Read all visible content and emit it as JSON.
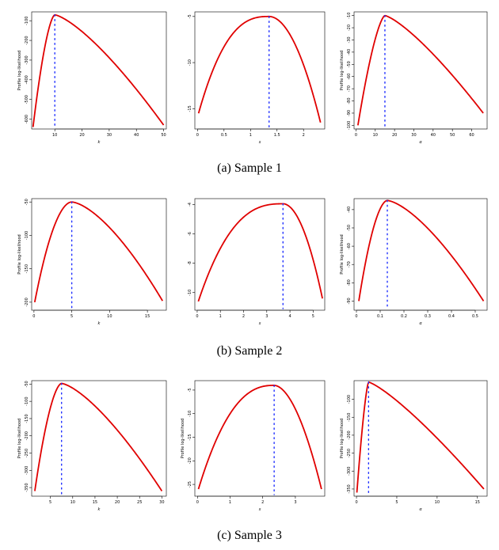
{
  "captions": [
    "(a) Sample 1",
    "(b) Sample 2",
    "(c) Sample 3"
  ],
  "colors": {
    "curve": "#e00000",
    "mle_line": "#1f2fff",
    "axis": "#000000"
  },
  "chart_data": [
    {
      "type": "line",
      "ylabel": "Profile log-likelihood",
      "xlabel": "k",
      "x_ticks": [
        10,
        20,
        30,
        40,
        50
      ],
      "y_ticks": [
        -100,
        -200,
        -300,
        -400,
        -500,
        -600
      ],
      "xlim": [
        1.5,
        51
      ],
      "ylim": [
        -650,
        -55
      ],
      "curve": {
        "kind": "skewed",
        "xmin": 2,
        "xmax": 50,
        "peak_x": 10,
        "peak_y": -70,
        "left_y": -640,
        "right_y": -630,
        "shape": 0.6
      },
      "mle": 10
    },
    {
      "type": "line",
      "ylabel": "",
      "xlabel": "s",
      "x_ticks": [
        0.0,
        0.5,
        1.0,
        1.5,
        2.0
      ],
      "y_ticks": [
        -5,
        -10,
        -15
      ],
      "xlim": [
        -0.05,
        2.4
      ],
      "ylim": [
        -17.2,
        -4.5
      ],
      "curve": {
        "kind": "skewed",
        "xmin": 0.02,
        "xmax": 2.32,
        "peak_x": 1.35,
        "peak_y": -5.0,
        "left_y": -15.5,
        "right_y": -16.5,
        "shape": 1.6
      },
      "mle": 1.35
    },
    {
      "type": "line",
      "ylabel": "Profile log-likelihood",
      "xlabel": "α",
      "x_ticks": [
        0,
        10,
        20,
        30,
        40,
        50,
        60
      ],
      "y_ticks": [
        -10,
        -20,
        -30,
        -40,
        -50,
        -60,
        -70,
        -80,
        -90,
        -100
      ],
      "xlim": [
        -1,
        68
      ],
      "ylim": [
        -103,
        -7
      ],
      "curve": {
        "kind": "skewed",
        "xmin": 1,
        "xmax": 66,
        "peak_x": 15,
        "peak_y": -10,
        "left_y": -100,
        "right_y": -90,
        "shape": 0.5
      },
      "mle": 15
    },
    {
      "type": "line",
      "ylabel": "Profile log-likelihood",
      "xlabel": "k",
      "x_ticks": [
        0,
        5,
        10,
        15
      ],
      "y_ticks": [
        -50,
        -100,
        -150,
        -200
      ],
      "xlim": [
        -0.3,
        17.5
      ],
      "ylim": [
        -212,
        -45
      ],
      "curve": {
        "kind": "skewed",
        "xmin": 0.1,
        "xmax": 17,
        "peak_x": 5,
        "peak_y": -50,
        "left_y": -200,
        "right_y": -198,
        "shape": 0.9
      },
      "mle": 5
    },
    {
      "type": "line",
      "ylabel": "",
      "xlabel": "s",
      "x_ticks": [
        0,
        1,
        2,
        3,
        4,
        5
      ],
      "y_ticks": [
        -4,
        -6,
        -8,
        -10
      ],
      "xlim": [
        -0.1,
        5.5
      ],
      "ylim": [
        -11.2,
        -3.6
      ],
      "curve": {
        "kind": "skewed",
        "xmin": 0.05,
        "xmax": 5.4,
        "peak_x": 3.7,
        "peak_y": -3.95,
        "left_y": -10.6,
        "right_y": -10.4,
        "shape": 1.6
      },
      "mle": 3.7
    },
    {
      "type": "line",
      "ylabel": "Profile log-likelihood",
      "xlabel": "α",
      "x_ticks": [
        0.0,
        0.1,
        0.2,
        0.3,
        0.4,
        0.5
      ],
      "y_ticks": [
        -40,
        -50,
        -60,
        -70,
        -80,
        -90
      ],
      "xlim": [
        -0.01,
        0.55
      ],
      "ylim": [
        -95,
        -34
      ],
      "curve": {
        "kind": "skewed",
        "xmin": 0.01,
        "xmax": 0.535,
        "peak_x": 0.13,
        "peak_y": -35,
        "left_y": -90,
        "right_y": -90,
        "shape": 0.8
      },
      "mle": 0.13
    },
    {
      "type": "line",
      "ylabel": "Profile log-likelihood",
      "xlabel": "k",
      "x_ticks": [
        5,
        10,
        15,
        20,
        25,
        30
      ],
      "y_ticks": [
        -50,
        -100,
        -150,
        -200,
        -250,
        -300,
        -350
      ],
      "xlim": [
        0.8,
        31
      ],
      "ylim": [
        -375,
        -40
      ],
      "curve": {
        "kind": "skewed",
        "xmin": 1.5,
        "xmax": 30,
        "peak_x": 7.5,
        "peak_y": -48,
        "left_y": -360,
        "right_y": -360,
        "shape": 0.7
      },
      "mle": 7.5
    },
    {
      "type": "line",
      "ylabel": "Profile log-likelihood",
      "xlabel": "s",
      "x_ticks": [
        0,
        1,
        2,
        3
      ],
      "y_ticks": [
        -5,
        -10,
        -15,
        -20,
        -25
      ],
      "xlim": [
        -0.08,
        3.9
      ],
      "ylim": [
        -27.5,
        -3
      ],
      "curve": {
        "kind": "skewed",
        "xmin": 0.03,
        "xmax": 3.8,
        "peak_x": 2.35,
        "peak_y": -4,
        "left_y": -26,
        "right_y": -26,
        "shape": 1.4
      },
      "mle": 2.35
    },
    {
      "type": "line",
      "ylabel": "Profile log-likelihood",
      "xlabel": "α",
      "x_ticks": [
        0,
        5,
        10,
        15
      ],
      "y_ticks": [
        -100,
        -150,
        -200,
        -250,
        -300,
        -350
      ],
      "xlim": [
        -0.3,
        16.2
      ],
      "ylim": [
        -370,
        -48
      ],
      "curve": {
        "kind": "skewed",
        "xmin": 0.05,
        "xmax": 15.8,
        "peak_x": 1.5,
        "peak_y": -52,
        "left_y": -360,
        "right_y": -350,
        "shape": 0.4
      },
      "mle": 1.5
    }
  ]
}
